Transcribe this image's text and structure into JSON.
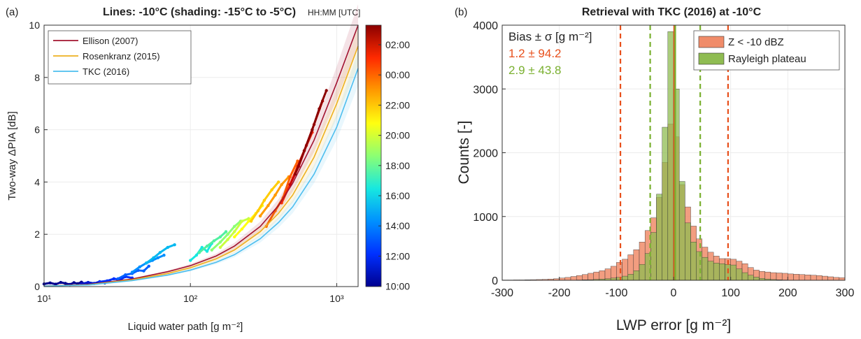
{
  "chart_data": [
    {
      "type": "scatter",
      "panel_label": "(a)",
      "title": "Lines: -10°C (shading: -15°C to -5°C)",
      "xlabel": "Liquid water path [g m⁻²]",
      "ylabel": "Two-way ΔPIA [dB]",
      "x_scale": "log",
      "xlim": [
        10,
        1400
      ],
      "ylim": [
        0,
        10
      ],
      "x_ticks": [
        {
          "value": 10,
          "label": "10¹"
        },
        {
          "value": 100,
          "label": "10²"
        },
        {
          "value": 1000,
          "label": "10³"
        }
      ],
      "y_ticks": [
        0,
        2,
        4,
        6,
        8,
        10
      ],
      "legend_position": "top-left",
      "colorbar": {
        "title": "HH:MM [UTC]",
        "ticks": [
          "02:00",
          "00:00",
          "22:00",
          "20:00",
          "18:00",
          "16:00",
          "14:00",
          "12:00",
          "10:00"
        ],
        "colors": [
          "#8b0000",
          "#ff2a00",
          "#ff9a00",
          "#ffff10",
          "#8cff73",
          "#17e8e0",
          "#0090ff",
          "#0030ff",
          "#00008f"
        ]
      },
      "series": [
        {
          "name": "Ellison (2007)",
          "color": "#a2142f",
          "x": [
            10,
            20,
            40,
            70,
            100,
            150,
            200,
            300,
            400,
            500,
            700,
            1000,
            1400
          ],
          "y": [
            0.02,
            0.08,
            0.29,
            0.57,
            0.8,
            1.17,
            1.55,
            2.3,
            3.1,
            3.95,
            5.6,
            7.8,
            10
          ]
        },
        {
          "name": "Rosenkranz (2015)",
          "color": "#edb120",
          "x": [
            10,
            20,
            40,
            70,
            100,
            150,
            200,
            300,
            400,
            500,
            700,
            1000,
            1400
          ],
          "y": [
            0.02,
            0.07,
            0.26,
            0.5,
            0.72,
            1.06,
            1.4,
            2.1,
            2.8,
            3.5,
            4.95,
            7.0,
            9.2
          ]
        },
        {
          "name": "TKC (2016)",
          "color": "#4dbeee",
          "x": [
            10,
            20,
            40,
            70,
            100,
            150,
            200,
            300,
            400,
            500,
            700,
            1000,
            1400
          ],
          "y": [
            0.02,
            0.06,
            0.23,
            0.44,
            0.63,
            0.93,
            1.22,
            1.83,
            2.45,
            3.05,
            4.3,
            6.1,
            8.35
          ]
        }
      ],
      "observations": [
        {
          "time": "10:00",
          "x": [
            10,
            11,
            12,
            13,
            14,
            15,
            16,
            17,
            18,
            19,
            20
          ],
          "y": [
            0.1,
            0.14,
            0.09,
            0.16,
            0.12,
            0.08,
            0.15,
            0.11,
            0.17,
            0.1,
            0.13
          ]
        },
        {
          "time": "11:00",
          "x": [
            18,
            20,
            22,
            24,
            26,
            28
          ],
          "y": [
            0.1,
            0.16,
            0.12,
            0.19,
            0.14,
            0.2
          ]
        },
        {
          "time": "12:00",
          "x": [
            24,
            27,
            30,
            33,
            36,
            40
          ],
          "y": [
            0.18,
            0.22,
            0.3,
            0.26,
            0.38,
            0.33
          ]
        },
        {
          "time": "13:00",
          "x": [
            32,
            36,
            40,
            44,
            48,
            52
          ],
          "y": [
            0.3,
            0.45,
            0.5,
            0.62,
            0.6,
            0.78
          ]
        },
        {
          "time": "14:00",
          "x": [
            40,
            45,
            50,
            55,
            60,
            66
          ],
          "y": [
            0.55,
            0.75,
            0.9,
            1.0,
            1.1,
            1.2
          ]
        },
        {
          "time": "15:00",
          "x": [
            50,
            56,
            62,
            70,
            78
          ],
          "y": [
            0.9,
            1.1,
            1.3,
            1.5,
            1.6
          ]
        },
        {
          "time": "16:00",
          "x": [
            100,
            110,
            120,
            130,
            140
          ],
          "y": [
            1.0,
            1.2,
            1.5,
            1.35,
            1.65
          ]
        },
        {
          "time": "17:00",
          "x": [
            115,
            130,
            145,
            160,
            175
          ],
          "y": [
            1.3,
            1.55,
            1.75,
            1.9,
            2.1
          ]
        },
        {
          "time": "18:00",
          "x": [
            140,
            160,
            180,
            200,
            220
          ],
          "y": [
            1.4,
            1.7,
            2.0,
            2.3,
            2.5
          ]
        },
        {
          "time": "19:00",
          "x": [
            160,
            180,
            200,
            225,
            250
          ],
          "y": [
            1.5,
            1.8,
            2.1,
            2.5,
            2.6
          ]
        },
        {
          "time": "20:00",
          "x": [
            200,
            225,
            250,
            280,
            310
          ],
          "y": [
            1.9,
            2.2,
            2.5,
            2.8,
            3.1
          ]
        },
        {
          "time": "21:00",
          "x": [
            260,
            290,
            320,
            360,
            400
          ],
          "y": [
            2.5,
            2.9,
            3.3,
            3.7,
            4.0
          ]
        },
        {
          "time": "22:00",
          "x": [
            300,
            340,
            380,
            420,
            470
          ],
          "y": [
            2.7,
            3.1,
            3.5,
            3.9,
            4.2
          ]
        },
        {
          "time": "23:00",
          "x": [
            330,
            380,
            430,
            480,
            540
          ],
          "y": [
            2.3,
            2.9,
            3.4,
            4.2,
            4.8
          ]
        },
        {
          "time": "00:00",
          "x": [
            420,
            480,
            540,
            600,
            680
          ],
          "y": [
            3.2,
            3.9,
            4.6,
            5.2,
            5.9
          ]
        },
        {
          "time": "01:00",
          "x": [
            480,
            550,
            620,
            700,
            800
          ],
          "y": [
            3.9,
            4.6,
            5.4,
            6.2,
            7.1
          ]
        },
        {
          "time": "02:00",
          "x": [
            520,
            600,
            680,
            760,
            850
          ],
          "y": [
            4.3,
            5.2,
            6.0,
            6.8,
            7.5
          ]
        }
      ]
    },
    {
      "type": "bar",
      "panel_label": "(b)",
      "title": "Retrieval with TKC (2016) at -10°C",
      "xlabel": "LWP error [g m⁻²]",
      "ylabel": "Counts [-]",
      "xlim": [
        -300,
        300
      ],
      "ylim": [
        0,
        4000
      ],
      "x_ticks": [
        -300,
        -200,
        -100,
        0,
        100,
        200,
        300
      ],
      "y_ticks": [
        0,
        1000,
        2000,
        3000,
        4000
      ],
      "bin_width": 10,
      "bin_centers": [
        -295,
        -285,
        -275,
        -265,
        -255,
        -245,
        -235,
        -225,
        -215,
        -205,
        -195,
        -185,
        -175,
        -165,
        -155,
        -145,
        -135,
        -125,
        -115,
        -105,
        -95,
        -85,
        -75,
        -65,
        -55,
        -45,
        -35,
        -25,
        -15,
        -5,
        5,
        15,
        25,
        35,
        45,
        55,
        65,
        75,
        85,
        95,
        105,
        115,
        125,
        135,
        145,
        155,
        165,
        175,
        185,
        195,
        205,
        215,
        225,
        235,
        245,
        255,
        265,
        275,
        285,
        295
      ],
      "legend_position": "top-right",
      "stats_header": "Bias ± σ [g m⁻²]",
      "series": [
        {
          "name": "Z < -10 dBZ",
          "color": "#f08c6a",
          "bias_label": "1.2 ± 94.2",
          "stat_color": "#e8501c",
          "bias": 1.2,
          "sigma": 94.2,
          "values": [
            5,
            5,
            6,
            6,
            8,
            10,
            12,
            15,
            20,
            25,
            35,
            45,
            60,
            75,
            90,
            110,
            130,
            150,
            180,
            220,
            280,
            330,
            400,
            480,
            600,
            780,
            980,
            1300,
            1850,
            2450,
            2250,
            1500,
            1150,
            850,
            650,
            520,
            440,
            380,
            340,
            340,
            330,
            300,
            260,
            200,
            160,
            140,
            130,
            120,
            115,
            110,
            100,
            95,
            90,
            85,
            80,
            75,
            65,
            55,
            45,
            40
          ]
        },
        {
          "name": "Rayleigh plateau",
          "color": "#8fbc52",
          "bias_label": "2.9 ± 43.8",
          "stat_color": "#7ab030",
          "bias": 2.9,
          "sigma": 43.8,
          "values": [
            0,
            0,
            0,
            0,
            0,
            0,
            0,
            0,
            0,
            0,
            0,
            0,
            0,
            5,
            8,
            10,
            15,
            20,
            25,
            35,
            45,
            65,
            95,
            150,
            250,
            420,
            750,
            1350,
            2400,
            3900,
            3000,
            1550,
            900,
            600,
            450,
            360,
            300,
            270,
            260,
            250,
            240,
            180,
            120,
            80,
            50,
            30,
            20,
            12,
            8,
            5,
            3,
            2,
            0,
            0,
            0,
            0,
            0,
            0,
            0,
            0
          ]
        }
      ]
    }
  ]
}
